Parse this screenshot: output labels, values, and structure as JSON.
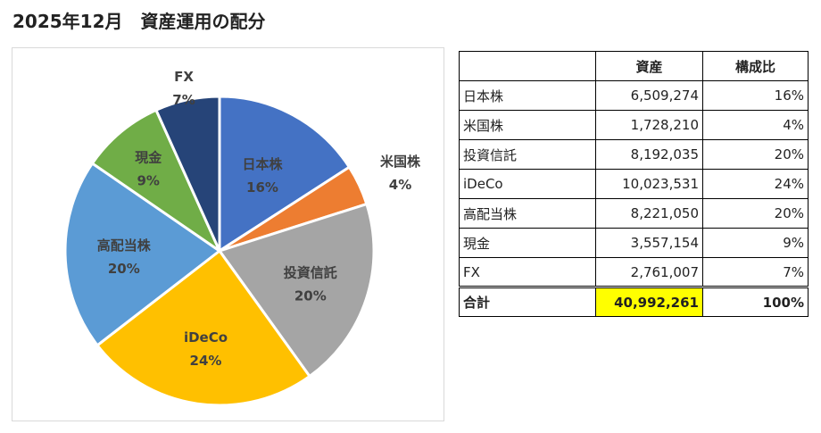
{
  "title": "2025年12月　資産運用の配分",
  "table": {
    "headers": [
      "",
      "資産",
      "構成比"
    ],
    "rows": [
      {
        "name": "日本株",
        "value": "6,509,274",
        "pct": "16%"
      },
      {
        "name": "米国株",
        "value": "1,728,210",
        "pct": "4%"
      },
      {
        "name": "投資信託",
        "value": "8,192,035",
        "pct": "20%"
      },
      {
        "name": "iDeCo",
        "value": "10,023,531",
        "pct": "24%"
      },
      {
        "name": "高配当株",
        "value": "8,221,050",
        "pct": "20%"
      },
      {
        "name": "現金",
        "value": "3,557,154",
        "pct": "9%"
      },
      {
        "name": "FX",
        "value": "2,761,007",
        "pct": "7%"
      }
    ],
    "total": {
      "name": "合計",
      "value": "40,992,261",
      "pct": "100%"
    },
    "total_highlight_color": "#ffff00"
  },
  "chart_data": {
    "type": "pie",
    "title": "",
    "start": "12 o'clock, clockwise",
    "slices": [
      {
        "label": "日本株",
        "value": 6509274,
        "pct_label": "16%",
        "color": "#4472c4",
        "label_color": "#404040"
      },
      {
        "label": "米国株",
        "value": 1728210,
        "pct_label": "4%",
        "color": "#ed7d31",
        "label_color": "#404040"
      },
      {
        "label": "投資信託",
        "value": 8192035,
        "pct_label": "20%",
        "color": "#a5a5a5",
        "label_color": "#404040"
      },
      {
        "label": "iDeCo",
        "value": 10023531,
        "pct_label": "24%",
        "color": "#ffc000",
        "label_color": "#404040"
      },
      {
        "label": "高配当株",
        "value": 8221050,
        "pct_label": "20%",
        "color": "#5b9bd5",
        "label_color": "#404040"
      },
      {
        "label": "現金",
        "value": 3557154,
        "pct_label": "9%",
        "color": "#70ad47",
        "label_color": "#404040"
      },
      {
        "label": "FX",
        "value": 2761007,
        "pct_label": "7%",
        "color": "#264478",
        "label_color": "#404040"
      }
    ]
  }
}
